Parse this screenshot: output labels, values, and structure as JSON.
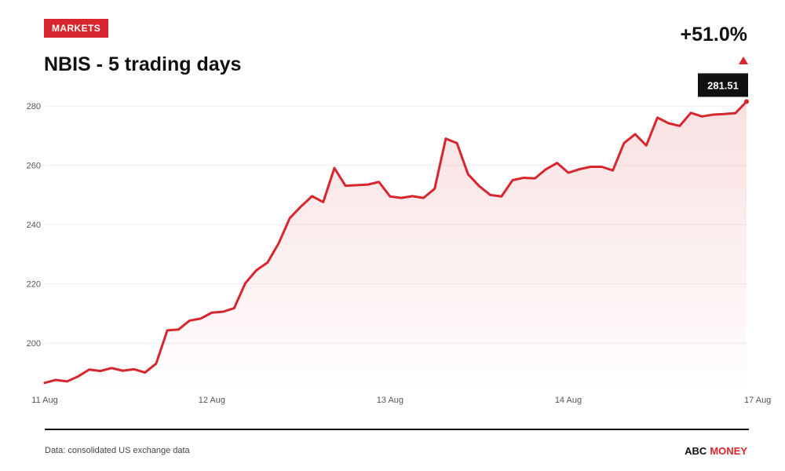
{
  "header": {
    "badge": "MARKETS",
    "title": "NBIS - 5 trading days",
    "change": "+51.0%"
  },
  "footer": {
    "source": "Data: consolidated US exchange data",
    "brand_part1": "ABC",
    "brand_part2": "MONEY"
  },
  "colors": {
    "accent": "#d7262d",
    "text": "#111111",
    "grid": "#eeeeee",
    "callout_bg": "#111111"
  },
  "chart_data": {
    "type": "area",
    "title": "NBIS - 5 trading days",
    "xlabel": "",
    "ylabel": "",
    "ylim": [
      186,
      284
    ],
    "yticks": [
      200,
      220,
      240,
      260,
      280
    ],
    "grid": true,
    "x_tick_labels": [
      {
        "label": "11 Aug",
        "index": 0
      },
      {
        "label": "12 Aug",
        "index": 15
      },
      {
        "label": "13 Aug",
        "index": 31
      },
      {
        "label": "14 Aug",
        "index": 47
      },
      {
        "label": "17 Aug",
        "index": 64
      }
    ],
    "last_value_label": "281.51",
    "series": [
      {
        "values": [
          186.6,
          187.6,
          187.1,
          188.8,
          191.1,
          190.6,
          191.6,
          190.7,
          191.2,
          190.1,
          193.1,
          204.3,
          204.6,
          207.6,
          208.3,
          210.3,
          210.6,
          211.8,
          220.2,
          224.6,
          227.2,
          233.7,
          242.2,
          246.1,
          249.6,
          247.6,
          259.1,
          253.1,
          253.3,
          253.5,
          254.4,
          249.5,
          249.0,
          249.6,
          249.0,
          252.1,
          269.0,
          267.5,
          257.0,
          253.0,
          250.0,
          249.5,
          255.0,
          255.8,
          255.6,
          258.7,
          260.8,
          257.5,
          258.7,
          259.5,
          259.5,
          258.3,
          267.5,
          270.5,
          266.7,
          276.1,
          274.2,
          273.3,
          277.7,
          276.5,
          277.1,
          277.3,
          277.6,
          281.51
        ]
      }
    ]
  }
}
